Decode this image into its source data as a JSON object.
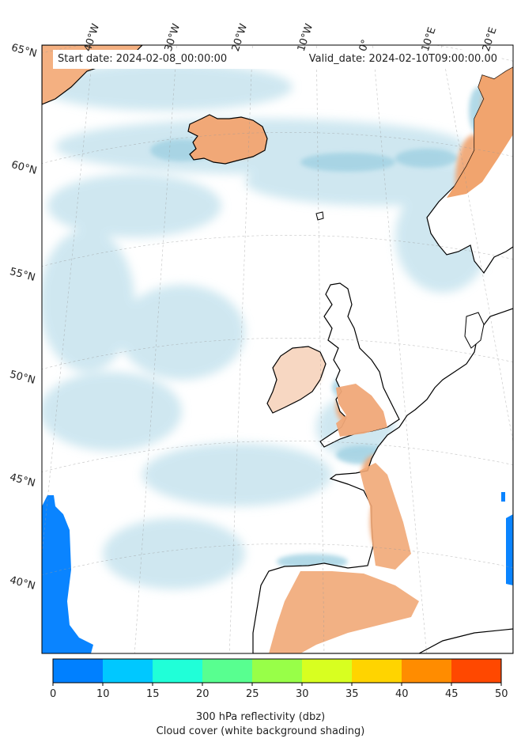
{
  "header": {
    "start_date": "Start date: 2024-02-08_00:00:00",
    "valid_date": "Valid_date: 2024-02-10T09:00:00.00"
  },
  "map": {
    "projection": "polar stereographic / lambert",
    "lon_labels": [
      "40°W",
      "30°W",
      "20°W",
      "10°W",
      "0°",
      "10°E",
      "20°E"
    ],
    "lat_labels": [
      "65°N",
      "60°N",
      "55°N",
      "50°N",
      "45°N",
      "40°N"
    ],
    "coastline_color": "#000000",
    "background_shading": "cloud cover (white-blue)"
  },
  "colorbar": {
    "ticks": [
      "0",
      "10",
      "15",
      "20",
      "25",
      "30",
      "35",
      "40",
      "45",
      "50"
    ],
    "colors": [
      "#0080ff",
      "#00c8ff",
      "#20ffd8",
      "#58ff90",
      "#98ff48",
      "#d8ff20",
      "#ffd400",
      "#ff8c00",
      "#ff4800"
    ],
    "label_line1": "300 hPa reflectivity (dbz)",
    "label_line2": "Cloud cover (white background shading)"
  }
}
